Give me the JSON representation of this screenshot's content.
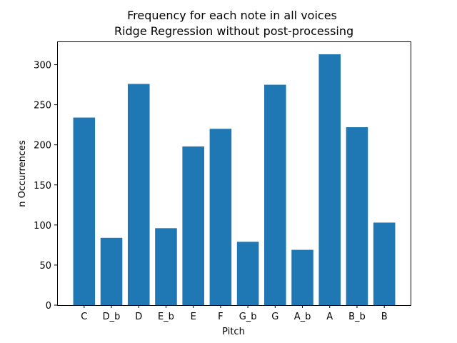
{
  "chart_data": {
    "type": "bar",
    "title_line1": "Frequency for each note in all voices",
    "title_line2": " Ridge Regression without post-processing",
    "xlabel": "Pitch",
    "ylabel": "n Occurrences",
    "categories": [
      "C",
      "D_b",
      "D",
      "E_b",
      "E",
      "F",
      "G_b",
      "G",
      "A_b",
      "A",
      "B_b",
      "B"
    ],
    "values": [
      234,
      84,
      276,
      96,
      198,
      220,
      79,
      275,
      69,
      313,
      222,
      103
    ],
    "ylim": [
      0,
      329
    ],
    "yticks": [
      0,
      50,
      100,
      150,
      200,
      250,
      300
    ],
    "grid": false,
    "legend": false,
    "bar_color": "#1f77b4"
  }
}
